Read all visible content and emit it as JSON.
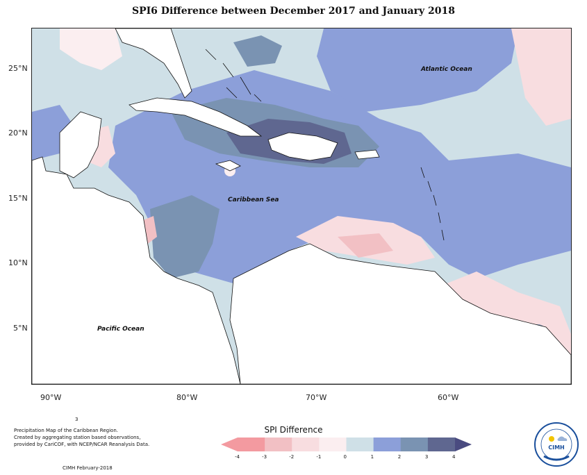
{
  "title": "SPI6 Difference between December 2017 and January 2018",
  "lat_labels": [
    "25°N",
    "20°N",
    "15°N",
    "10°N",
    "5°N"
  ],
  "lon_labels": [
    "90°W",
    "80°W",
    "70°W",
    "60°W"
  ],
  "place_labels": {
    "atlantic": "Atlantic Ocean",
    "caribbean": "Caribbean Sea",
    "pacific": "Pacific Ocean"
  },
  "legend": {
    "title": "SPI Difference",
    "ticks": [
      "-4",
      "-3",
      "-2",
      "-1",
      "0",
      "1",
      "2",
      "3",
      "4"
    ],
    "colors": [
      "#f39aa0",
      "#f2c0c4",
      "#f8dde0",
      "#fbeef0",
      "#cfe0e7",
      "#8c9fd9",
      "#7a93b2",
      "#5f6790"
    ]
  },
  "credit": {
    "line1": "Precipitation Map of the Caribbean Region.",
    "line2": "Created by aggregating station based observations,",
    "line3": "provided by CariCOF, with NCEP/NCAR Reanalysis Data.",
    "marker": "3",
    "footer": "CIMH February-2018"
  },
  "logo": {
    "text": "CIMH",
    "colors": {
      "sun": "#f2c400",
      "ring": "#1a4f9c"
    }
  }
}
